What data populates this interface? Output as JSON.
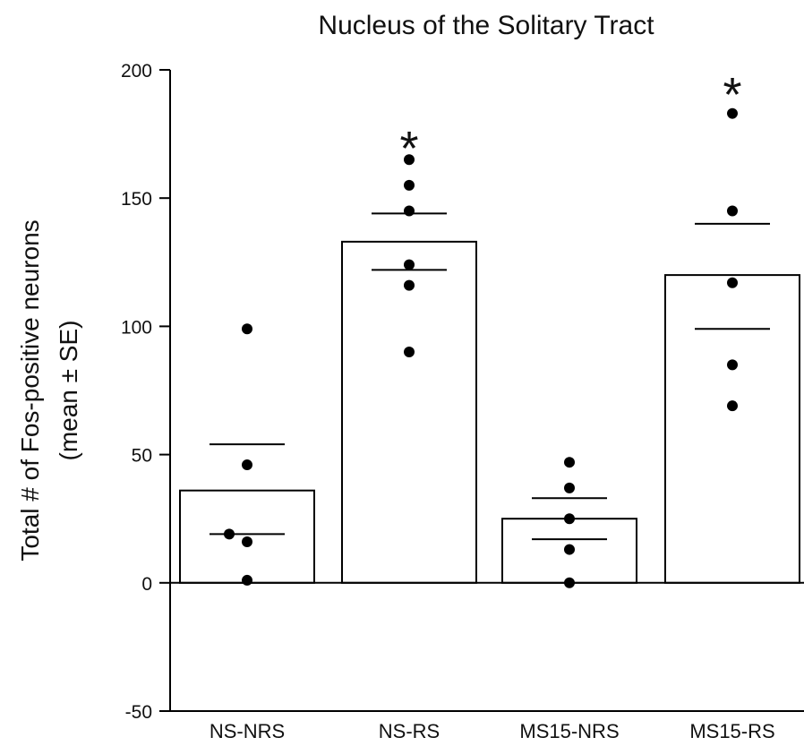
{
  "chart_data": {
    "type": "bar",
    "title": "Nucleus of the Solitary Tract",
    "ylabel_line1": "Total # of Fos-positive neurons",
    "ylabel_line2": "(mean ± SE)",
    "categories": [
      "NS-NRS",
      "NS-RS",
      "MS15-NRS",
      "MS15-RS"
    ],
    "ylim": [
      -50,
      200
    ],
    "yticks": [
      -50,
      0,
      50,
      100,
      150,
      200
    ],
    "grid": false,
    "legend": "none",
    "series": [
      {
        "values": [
          36,
          133,
          25,
          120
        ],
        "se_upper": [
          54,
          144,
          33,
          140
        ],
        "se_lower": [
          19,
          122,
          17,
          99
        ],
        "points": [
          [
            99,
            46,
            19,
            16,
            1
          ],
          [
            165,
            155,
            145,
            124,
            116,
            90
          ],
          [
            47,
            37,
            25,
            13,
            0
          ],
          [
            183,
            145,
            117,
            85,
            69
          ]
        ]
      }
    ],
    "significance": [
      "",
      "*",
      "",
      "*"
    ]
  }
}
